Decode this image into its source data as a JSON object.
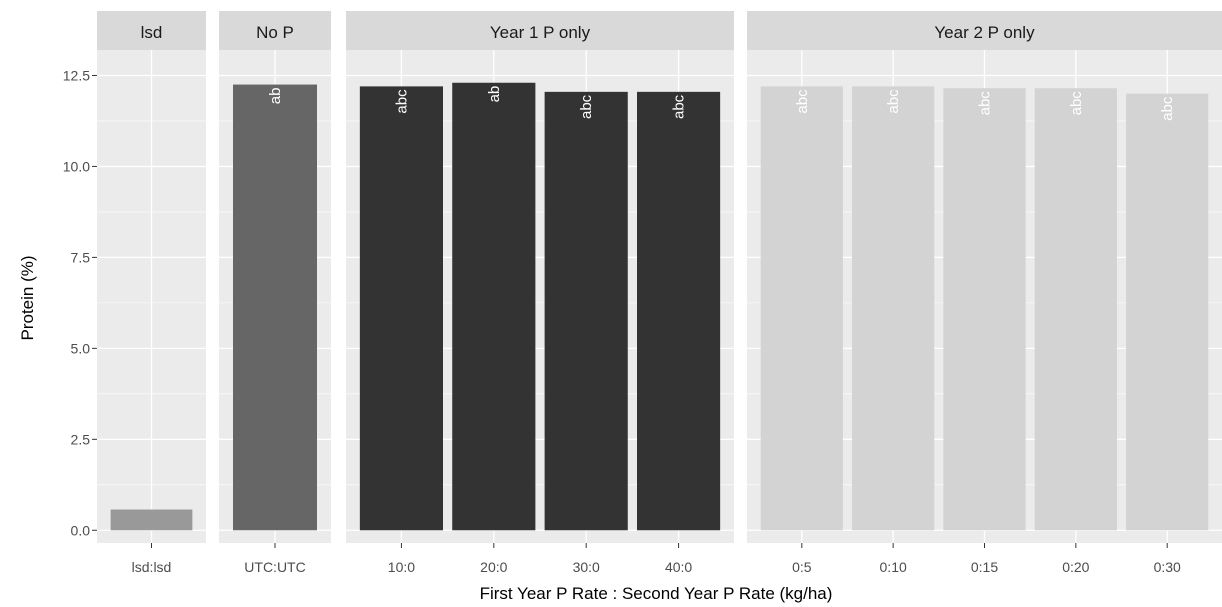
{
  "chart_data": {
    "type": "bar",
    "xlabel": "First Year P Rate : Second Year P Rate (kg/ha)",
    "ylabel": "Protein (%)",
    "ylim": [
      -0.35,
      13.2
    ],
    "yticks": [
      "0.0",
      "2.5",
      "5.0",
      "7.5",
      "10.0",
      "12.5"
    ],
    "ytick_values": [
      0,
      2.5,
      5,
      7.5,
      10,
      12.5
    ],
    "grid": true,
    "panel_background": "#ebebeb",
    "strip_background": "#d9d9d9",
    "grid_color": "#ffffff",
    "facets": [
      {
        "title": "lsd",
        "bar_color": "#999999",
        "label_color": "#ffffff",
        "bars": [
          {
            "category": "lsd:lsd",
            "value": 0.57,
            "label": ""
          }
        ]
      },
      {
        "title": "No P",
        "bar_color": "#666666",
        "label_color": "#ffffff",
        "bars": [
          {
            "category": "UTC:UTC",
            "value": 12.25,
            "label": "ab"
          }
        ]
      },
      {
        "title": "Year 1 P only",
        "bar_color": "#333333",
        "label_color": "#ffffff",
        "bars": [
          {
            "category": "10:0",
            "value": 12.2,
            "label": "abc"
          },
          {
            "category": "20:0",
            "value": 12.3,
            "label": "ab"
          },
          {
            "category": "30:0",
            "value": 12.05,
            "label": "abc"
          },
          {
            "category": "40:0",
            "value": 12.05,
            "label": "abc"
          }
        ]
      },
      {
        "title": "Year 2 P only",
        "bar_color": "#d3d3d3",
        "label_color": "#ffffff",
        "bars": [
          {
            "category": "0:5",
            "value": 12.2,
            "label": "abc"
          },
          {
            "category": "0:10",
            "value": 12.2,
            "label": "abc"
          },
          {
            "category": "0:15",
            "value": 12.15,
            "label": "abc"
          },
          {
            "category": "0:20",
            "value": 12.15,
            "label": "abc"
          },
          {
            "category": "0:30",
            "value": 12.0,
            "label": "abc"
          }
        ]
      }
    ]
  }
}
